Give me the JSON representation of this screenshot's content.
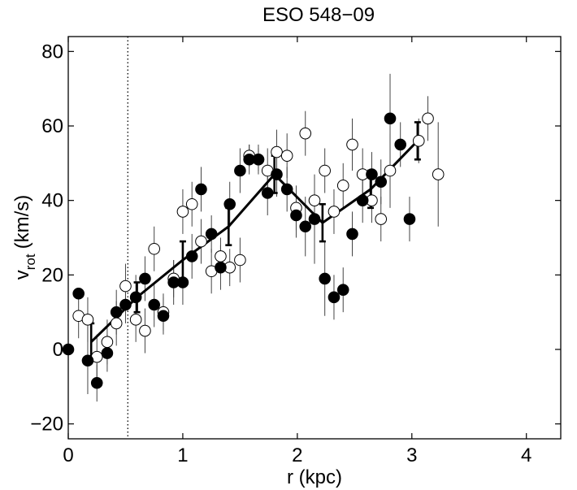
{
  "chart_data": {
    "type": "scatter",
    "title": "ESO 548−09",
    "xlabel": "r (kpc)",
    "ylabel_main": "v",
    "ylabel_sub": "rot",
    "ylabel_unit": "(km/s)",
    "xlim": [
      0,
      4.3
    ],
    "ylim": [
      -24,
      84
    ],
    "xticks": [
      0,
      1,
      2,
      3,
      4
    ],
    "yticks": [
      -20,
      0,
      20,
      40,
      60,
      80
    ],
    "ytick_labels": [
      "−20",
      "0",
      "20",
      "40",
      "60",
      "80"
    ],
    "grid": false,
    "legend": "none",
    "vertical_marker_x": 0.52,
    "series": [
      {
        "marker": "filled-circle",
        "points": [
          {
            "x": 0.0,
            "y": 0,
            "err": 0
          },
          {
            "x": 0.09,
            "y": 15,
            "err": 0
          },
          {
            "x": 0.17,
            "y": -3,
            "err": 9
          },
          {
            "x": 0.25,
            "y": -9,
            "err": 5
          },
          {
            "x": 0.34,
            "y": -1,
            "err": 5
          },
          {
            "x": 0.42,
            "y": 10,
            "err": 6
          },
          {
            "x": 0.5,
            "y": 12,
            "err": 5
          },
          {
            "x": 0.59,
            "y": 14,
            "err": 6
          },
          {
            "x": 0.67,
            "y": 19,
            "err": 6
          },
          {
            "x": 0.75,
            "y": 12,
            "err": 6
          },
          {
            "x": 0.83,
            "y": 9,
            "err": 5
          },
          {
            "x": 0.92,
            "y": 18,
            "err": 6
          },
          {
            "x": 1.0,
            "y": 18,
            "err": 6
          },
          {
            "x": 1.08,
            "y": 25,
            "err": 6
          },
          {
            "x": 1.16,
            "y": 43,
            "err": 6
          },
          {
            "x": 1.25,
            "y": 31,
            "err": 5
          },
          {
            "x": 1.33,
            "y": 22,
            "err": 6
          },
          {
            "x": 1.41,
            "y": 39,
            "err": 6
          },
          {
            "x": 1.5,
            "y": 48,
            "err": 6
          },
          {
            "x": 1.58,
            "y": 51,
            "err": 4
          },
          {
            "x": 1.66,
            "y": 51,
            "err": 4
          },
          {
            "x": 1.74,
            "y": 42,
            "err": 6
          },
          {
            "x": 1.82,
            "y": 47,
            "err": 6
          },
          {
            "x": 1.91,
            "y": 43,
            "err": 6
          },
          {
            "x": 1.99,
            "y": 36,
            "err": 6
          },
          {
            "x": 2.07,
            "y": 33,
            "err": 8
          },
          {
            "x": 2.15,
            "y": 35,
            "err": 12
          },
          {
            "x": 2.24,
            "y": 19,
            "err": 10
          },
          {
            "x": 2.32,
            "y": 14,
            "err": 6
          },
          {
            "x": 2.4,
            "y": 16,
            "err": 6
          },
          {
            "x": 2.48,
            "y": 31,
            "err": 6
          },
          {
            "x": 2.57,
            "y": 40,
            "err": 6
          },
          {
            "x": 2.65,
            "y": 47,
            "err": 6
          },
          {
            "x": 2.73,
            "y": 45,
            "err": 6
          },
          {
            "x": 2.81,
            "y": 62,
            "err": 12
          },
          {
            "x": 2.9,
            "y": 55,
            "err": 6
          },
          {
            "x": 2.98,
            "y": 35,
            "err": 6
          }
        ]
      },
      {
        "marker": "open-circle",
        "points": [
          {
            "x": 0.09,
            "y": 9,
            "err": 6
          },
          {
            "x": 0.17,
            "y": 8,
            "err": 6
          },
          {
            "x": 0.25,
            "y": -2,
            "err": 6
          },
          {
            "x": 0.34,
            "y": 2,
            "err": 6
          },
          {
            "x": 0.42,
            "y": 7,
            "err": 6
          },
          {
            "x": 0.5,
            "y": 17,
            "err": 6
          },
          {
            "x": 0.59,
            "y": 8,
            "err": 6
          },
          {
            "x": 0.67,
            "y": 5,
            "err": 6
          },
          {
            "x": 0.75,
            "y": 27,
            "err": 6
          },
          {
            "x": 0.83,
            "y": 10,
            "err": 5
          },
          {
            "x": 0.92,
            "y": 19,
            "err": 5
          },
          {
            "x": 1.0,
            "y": 37,
            "err": 6
          },
          {
            "x": 1.08,
            "y": 39,
            "err": 6
          },
          {
            "x": 1.16,
            "y": 29,
            "err": 6
          },
          {
            "x": 1.25,
            "y": 21,
            "err": 6
          },
          {
            "x": 1.33,
            "y": 25,
            "err": 5
          },
          {
            "x": 1.41,
            "y": 22,
            "err": 5
          },
          {
            "x": 1.5,
            "y": 24,
            "err": 6
          },
          {
            "x": 1.58,
            "y": 52,
            "err": 3
          },
          {
            "x": 1.66,
            "y": 51,
            "err": 3
          },
          {
            "x": 1.74,
            "y": 48,
            "err": 6
          },
          {
            "x": 1.82,
            "y": 53,
            "err": 6
          },
          {
            "x": 1.91,
            "y": 52,
            "err": 6
          },
          {
            "x": 1.99,
            "y": 38,
            "err": 6
          },
          {
            "x": 2.07,
            "y": 58,
            "err": 6
          },
          {
            "x": 2.15,
            "y": 40,
            "err": 6
          },
          {
            "x": 2.24,
            "y": 48,
            "err": 6
          },
          {
            "x": 2.32,
            "y": 37,
            "err": 6
          },
          {
            "x": 2.4,
            "y": 44,
            "err": 6
          },
          {
            "x": 2.48,
            "y": 55,
            "err": 7
          },
          {
            "x": 2.57,
            "y": 47,
            "err": 7
          },
          {
            "x": 2.65,
            "y": 40,
            "err": 6
          },
          {
            "x": 2.73,
            "y": 35,
            "err": 6
          },
          {
            "x": 2.81,
            "y": 48,
            "err": 10
          },
          {
            "x": 3.06,
            "y": 56,
            "err": 6
          },
          {
            "x": 3.14,
            "y": 62,
            "err": 6
          },
          {
            "x": 3.23,
            "y": 47,
            "err": 14
          }
        ]
      }
    ],
    "average_curve": [
      {
        "x": 0.2,
        "y": 2,
        "err": 5
      },
      {
        "x": 0.6,
        "y": 14,
        "err": 4
      },
      {
        "x": 1.0,
        "y": 24,
        "err": 5
      },
      {
        "x": 1.4,
        "y": 33,
        "err": 5
      },
      {
        "x": 1.8,
        "y": 47,
        "err": 5
      },
      {
        "x": 2.22,
        "y": 34,
        "err": 5
      },
      {
        "x": 2.64,
        "y": 43,
        "err": 5
      },
      {
        "x": 3.05,
        "y": 56,
        "err": 5
      }
    ]
  }
}
